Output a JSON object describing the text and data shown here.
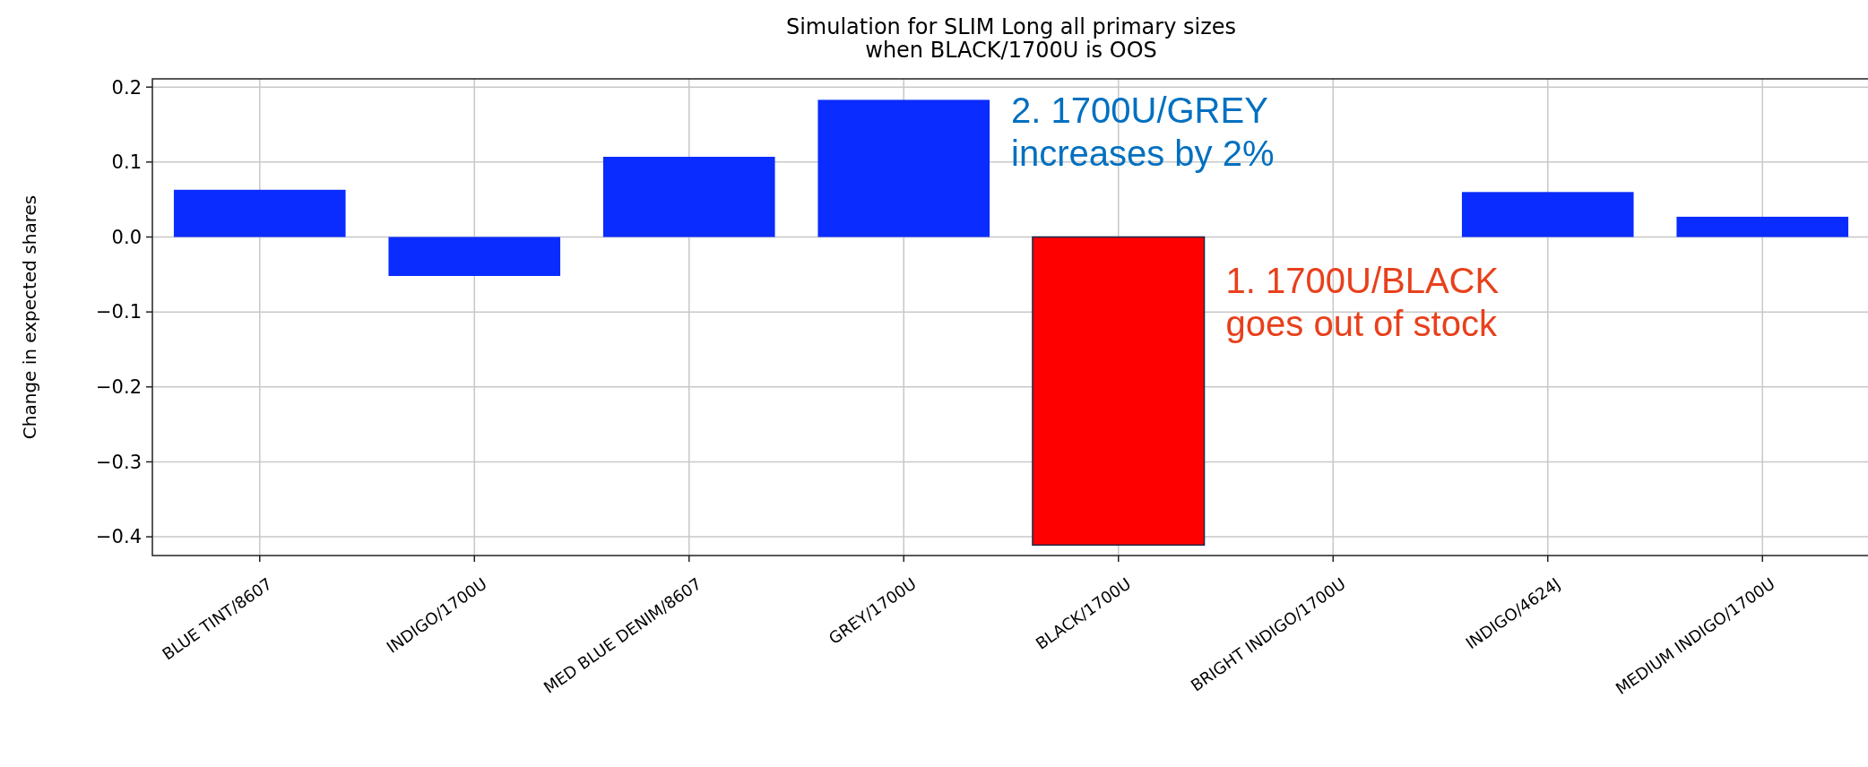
{
  "chart_data": {
    "type": "bar",
    "title": "Simulation for SLIM Long all primary sizes\nwhen BLACK/1700U is OOS",
    "ylabel": "Change in expected shares",
    "categories": [
      "BLUE TINT/8607",
      "INDIGO/1700U",
      "MED BLUE DENIM/8607",
      "GREY/1700U",
      "BLACK/1700U",
      "BRIGHT INDIGO/1700U",
      "INDIGO/4624J",
      "MEDIUM INDIGO/1700U"
    ],
    "values": [
      0.063,
      -0.052,
      0.107,
      0.183,
      -0.411,
      0,
      0.06,
      0.027
    ],
    "colors": [
      "#0a2cff",
      "#0a2cff",
      "#0a2cff",
      "#0a2cff",
      "#ff0000",
      "#0a2cff",
      "#0a2cff",
      "#0a2cff"
    ],
    "ylim": [
      -0.425,
      0.211
    ],
    "yticks": [
      {
        "value": -0.4,
        "label": "−0.4"
      },
      {
        "value": -0.3,
        "label": "−0.3"
      },
      {
        "value": -0.2,
        "label": "−0.2"
      },
      {
        "value": -0.1,
        "label": "−0.1"
      },
      {
        "value": 0,
        "label": "0.0"
      },
      {
        "value": 0.1,
        "label": "0.1"
      },
      {
        "value": 0.2,
        "label": "0.2"
      }
    ],
    "grid": true,
    "annotations": [
      {
        "text": "2. 1700U/GREY\nincreases by 2%",
        "x": "GREY/1700U",
        "y": 0.183
      },
      "1. 1700U/BLACK\ngoes out of stock"
    ]
  }
}
